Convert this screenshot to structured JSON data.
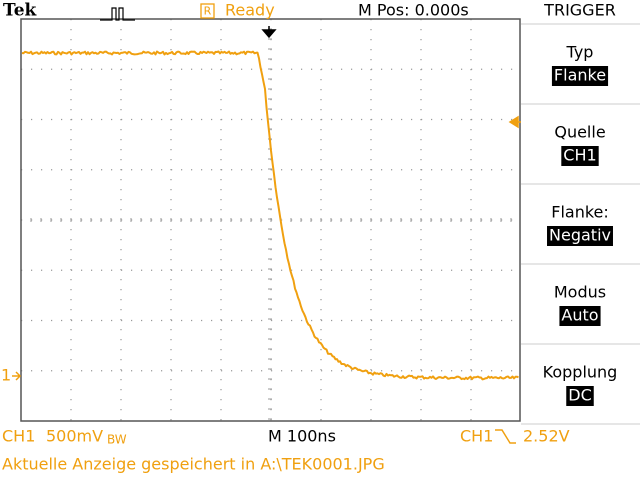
{
  "header": {
    "brand": "Tek",
    "status_icon": "R",
    "status": "Ready",
    "position": "M Pos: 0.000s",
    "menu_title": "TRIGGER"
  },
  "menu": [
    {
      "label": "Typ",
      "value": "Flanke"
    },
    {
      "label": "Quelle",
      "value": "CH1"
    },
    {
      "label": "Flanke:",
      "value": "Negativ"
    },
    {
      "label": "Modus",
      "value": "Auto"
    },
    {
      "label": "Kopplung",
      "value": "DC"
    }
  ],
  "channel_marker": "1",
  "footer": {
    "channel": "CH1",
    "scale": "500mV",
    "bandwidth": "BW",
    "timebase": "M 100ns",
    "trigger_source": "CH1",
    "trigger_level": "2.52V"
  },
  "status_message": "Aktuelle Anzeige gespeichert in A:\\TEK0001.JPG"
}
